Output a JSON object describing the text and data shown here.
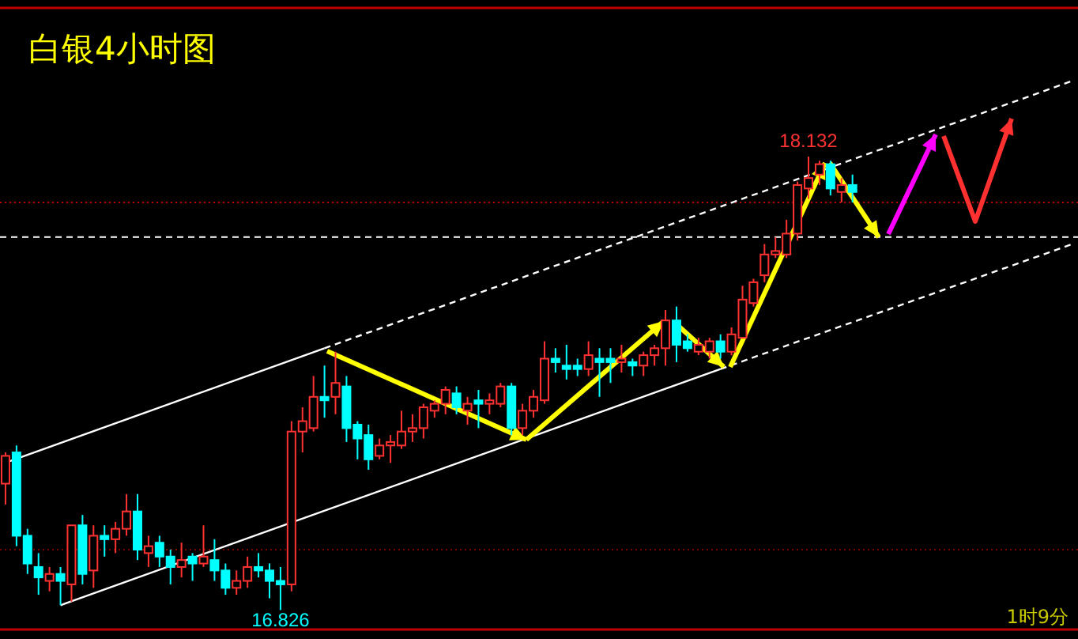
{
  "chart_data": {
    "type": "candlestick",
    "title": "白银4小时图",
    "categories": [
      null,
      null,
      null,
      null,
      null,
      null,
      null,
      null,
      null,
      null,
      null,
      null,
      null,
      null,
      null,
      null,
      null,
      null,
      null,
      null,
      null,
      null,
      null,
      null,
      null,
      null,
      null,
      null,
      null,
      null,
      null,
      null,
      null,
      null,
      null,
      null,
      null,
      null,
      null,
      null,
      null,
      null,
      null,
      null,
      null,
      null,
      null,
      null,
      null,
      null,
      null,
      null,
      null,
      null,
      null,
      null,
      null,
      null,
      null,
      null,
      null,
      null,
      null,
      null,
      null,
      null,
      null,
      null,
      null,
      null,
      null,
      null,
      null,
      null,
      null,
      null,
      null,
      null,
      null,
      null,
      null,
      null,
      null,
      null,
      null,
      null,
      null,
      null,
      null,
      null,
      null,
      null,
      null,
      null,
      null,
      null,
      null,
      null
    ],
    "ohlc": [
      [
        17.19,
        17.28,
        17.13,
        17.27
      ],
      [
        17.28,
        17.3,
        17.01,
        17.04
      ],
      [
        17.04,
        17.06,
        16.93,
        16.96
      ],
      [
        16.95,
        16.99,
        16.87,
        16.92
      ],
      [
        16.91,
        16.95,
        16.88,
        16.93
      ],
      [
        16.93,
        16.95,
        16.84,
        16.91
      ],
      [
        16.9,
        17.07,
        16.85,
        17.07
      ],
      [
        17.07,
        17.1,
        16.9,
        16.93
      ],
      [
        16.94,
        17.07,
        16.89,
        17.04
      ],
      [
        17.04,
        17.07,
        16.98,
        17.03
      ],
      [
        17.03,
        17.08,
        16.99,
        17.06
      ],
      [
        17.06,
        17.16,
        17.04,
        17.11
      ],
      [
        17.11,
        17.16,
        16.97,
        17.0
      ],
      [
        16.99,
        17.04,
        16.95,
        17.01
      ],
      [
        17.02,
        17.04,
        16.95,
        16.98
      ],
      [
        16.98,
        17.0,
        16.9,
        16.95
      ],
      [
        16.95,
        17.02,
        16.92,
        16.97
      ],
      [
        16.98,
        16.99,
        16.91,
        16.96
      ],
      [
        16.96,
        17.07,
        16.95,
        16.98
      ],
      [
        16.97,
        17.03,
        16.91,
        16.94
      ],
      [
        16.94,
        16.96,
        16.87,
        16.89
      ],
      [
        16.89,
        16.94,
        16.87,
        16.91
      ],
      [
        16.91,
        16.98,
        16.89,
        16.95
      ],
      [
        16.95,
        16.99,
        16.92,
        16.94
      ],
      [
        16.94,
        16.96,
        16.86,
        16.91
      ],
      [
        16.91,
        16.95,
        16.826,
        16.9
      ],
      [
        16.9,
        17.37,
        16.88,
        17.34
      ],
      [
        17.34,
        17.41,
        17.28,
        17.37
      ],
      [
        17.35,
        17.5,
        17.34,
        17.44
      ],
      [
        17.44,
        17.53,
        17.38,
        17.43
      ],
      [
        17.44,
        17.57,
        17.39,
        17.48
      ],
      [
        17.47,
        17.5,
        17.31,
        17.35
      ],
      [
        17.36,
        17.37,
        17.26,
        17.32
      ],
      [
        17.33,
        17.36,
        17.23,
        17.26
      ],
      [
        17.27,
        17.32,
        17.26,
        17.3
      ],
      [
        17.3,
        17.33,
        17.25,
        17.31
      ],
      [
        17.3,
        17.4,
        17.29,
        17.34
      ],
      [
        17.34,
        17.39,
        17.31,
        17.35
      ],
      [
        17.35,
        17.42,
        17.32,
        17.41
      ],
      [
        17.4,
        17.43,
        17.38,
        17.42
      ],
      [
        17.42,
        17.47,
        17.39,
        17.46
      ],
      [
        17.45,
        17.47,
        17.39,
        17.41
      ],
      [
        17.4,
        17.44,
        17.36,
        17.42
      ],
      [
        17.43,
        17.46,
        17.35,
        17.42
      ],
      [
        17.42,
        17.45,
        17.39,
        17.43
      ],
      [
        17.42,
        17.48,
        17.41,
        17.47
      ],
      [
        17.47,
        17.48,
        17.33,
        17.35
      ],
      [
        17.35,
        17.42,
        17.33,
        17.4
      ],
      [
        17.4,
        17.46,
        17.38,
        17.44
      ],
      [
        17.43,
        17.6,
        17.42,
        17.55
      ],
      [
        17.55,
        17.58,
        17.51,
        17.54
      ],
      [
        17.53,
        17.59,
        17.49,
        17.52
      ],
      [
        17.53,
        17.55,
        17.5,
        17.52
      ],
      [
        17.52,
        17.6,
        17.5,
        17.56
      ],
      [
        17.55,
        17.58,
        17.44,
        17.54
      ],
      [
        17.55,
        17.58,
        17.48,
        17.54
      ],
      [
        17.54,
        17.59,
        17.51,
        17.55
      ],
      [
        17.54,
        17.55,
        17.5,
        17.53
      ],
      [
        17.53,
        17.57,
        17.5,
        17.56
      ],
      [
        17.56,
        17.59,
        17.53,
        17.58
      ],
      [
        17.58,
        17.69,
        17.53,
        17.66
      ],
      [
        17.66,
        17.7,
        17.54,
        17.59
      ],
      [
        17.6,
        17.62,
        17.57,
        17.58
      ],
      [
        17.57,
        17.61,
        17.56,
        17.59
      ],
      [
        17.57,
        17.61,
        17.55,
        17.6
      ],
      [
        17.6,
        17.62,
        17.55,
        17.57
      ],
      [
        17.57,
        17.64,
        17.56,
        17.62
      ],
      [
        17.61,
        17.76,
        17.61,
        17.72
      ],
      [
        17.71,
        17.78,
        17.7,
        17.77
      ],
      [
        17.79,
        17.88,
        17.77,
        17.85
      ],
      [
        17.85,
        17.9,
        17.84,
        17.86
      ],
      [
        17.85,
        17.95,
        17.84,
        17.91
      ],
      [
        17.91,
        18.06,
        17.89,
        18.05
      ],
      [
        18.04,
        18.132,
        18.01,
        18.07
      ],
      [
        18.08,
        18.12,
        18.05,
        18.11
      ],
      [
        18.11,
        18.12,
        18.02,
        18.04
      ],
      [
        18.03,
        18.07,
        18.0,
        18.05
      ],
      [
        18.05,
        18.08,
        18.0,
        18.03
      ],
      null,
      null,
      null,
      null,
      null,
      null,
      null,
      null,
      null,
      null,
      null,
      null,
      null,
      null,
      null,
      null,
      null,
      null,
      null,
      null
    ],
    "colors": [
      "#ff3232",
      "#00ffff",
      "#00ffff",
      "#00ffff",
      "#ff3232",
      "#00ffff",
      "#ff3232",
      "#00ffff",
      "#ff3232",
      "#00ffff",
      "#ff3232",
      "#ff3232",
      "#00ffff",
      "#ff3232",
      "#00ffff",
      "#00ffff",
      "#ff3232",
      "#00ffff",
      "#ff3232",
      "#00ffff",
      "#00ffff",
      "#ff3232",
      "#ff3232",
      "#00ffff",
      "#00ffff",
      "#00ffff",
      "#ff3232",
      "#ff3232",
      "#ff3232",
      "#00ffff",
      "#ff3232",
      "#00ffff",
      "#00ffff",
      "#00ffff",
      "#ff3232",
      "#ff3232",
      "#ff3232",
      "#ff3232",
      "#ff3232",
      "#ff3232",
      "#ff3232",
      "#00ffff",
      "#ff3232",
      "#00ffff",
      "#ff3232",
      "#ff3232",
      "#00ffff",
      "#ff3232",
      "#ff3232",
      "#ff3232",
      "#00ffff",
      "#00ffff",
      "#00ffff",
      "#ff3232",
      "#00ffff",
      "#00ffff",
      "#ff3232",
      "#00ffff",
      "#ff3232",
      "#ff3232",
      "#ff3232",
      "#00ffff",
      "#00ffff",
      "#ff3232",
      "#ff3232",
      "#00ffff",
      "#ff3232",
      "#ff3232",
      "#ff3232",
      "#ff3232",
      "#ff3232",
      "#ff3232",
      "#ff3232",
      "#ff3232",
      "#ff3232",
      "#00ffff",
      "#ff3232",
      "#00ffff",
      null,
      null,
      null,
      null,
      null,
      null,
      null,
      null,
      null,
      null,
      null,
      null,
      null,
      null,
      null,
      null,
      null,
      null,
      null,
      null
    ],
    "series": [
      {
        "type": "line",
        "color": "#ffffff",
        "line_style": "solid",
        "values": [
          17.25,
          null,
          null,
          null,
          null,
          null,
          null,
          null,
          null,
          null,
          null,
          null,
          null,
          null,
          null,
          null,
          null,
          null,
          null,
          null,
          null,
          null,
          null,
          null,
          null,
          null,
          null,
          null,
          null,
          17.58,
          null,
          null,
          null,
          null,
          null,
          null,
          null,
          null,
          null,
          null,
          null,
          null,
          null,
          null,
          null,
          null,
          null,
          null,
          null,
          null,
          null,
          null,
          null,
          null,
          null,
          null,
          null,
          null,
          null,
          null,
          null,
          null,
          null,
          null,
          null,
          null,
          null,
          null,
          null,
          null,
          null,
          null,
          null,
          null,
          null,
          null,
          null,
          null,
          null,
          null,
          null,
          null,
          null,
          null,
          null,
          null,
          null,
          null,
          null,
          null,
          null,
          null,
          null,
          null,
          null,
          null,
          null,
          null
        ]
      },
      {
        "type": "line",
        "color": "#ffffff",
        "line_style": "dashed",
        "values": [
          null,
          null,
          null,
          null,
          null,
          null,
          null,
          null,
          null,
          null,
          null,
          null,
          null,
          null,
          null,
          null,
          null,
          null,
          null,
          null,
          null,
          null,
          null,
          null,
          null,
          null,
          null,
          null,
          null,
          17.58,
          null,
          null,
          null,
          null,
          null,
          null,
          null,
          null,
          null,
          null,
          null,
          null,
          null,
          null,
          null,
          null,
          null,
          null,
          null,
          null,
          null,
          null,
          null,
          null,
          null,
          null,
          null,
          null,
          null,
          null,
          null,
          null,
          null,
          null,
          null,
          null,
          null,
          null,
          null,
          null,
          null,
          null,
          null,
          null,
          null,
          null,
          null,
          null,
          null,
          null,
          null,
          null,
          null,
          null,
          null,
          null,
          null,
          null,
          null,
          null,
          null,
          null,
          null,
          null,
          null,
          null,
          null,
          18.35
        ]
      },
      {
        "type": "line",
        "color": "#ffffff",
        "line_style": "solid",
        "values": [
          null,
          null,
          null,
          null,
          null,
          16.84,
          null,
          null,
          null,
          null,
          null,
          null,
          null,
          null,
          null,
          null,
          null,
          null,
          null,
          null,
          null,
          null,
          null,
          null,
          null,
          null,
          null,
          null,
          null,
          null,
          null,
          null,
          null,
          null,
          null,
          null,
          null,
          null,
          null,
          null,
          null,
          null,
          null,
          null,
          null,
          null,
          null,
          null,
          null,
          null,
          null,
          null,
          null,
          null,
          null,
          null,
          null,
          null,
          null,
          null,
          null,
          null,
          null,
          null,
          null,
          17.52,
          null,
          null,
          null,
          null,
          null,
          null,
          null,
          null,
          null,
          null,
          null,
          null,
          null,
          null,
          null,
          null,
          null,
          null,
          null,
          null,
          null,
          null,
          null,
          null,
          null,
          null,
          null,
          null,
          null,
          null,
          null,
          null
        ]
      },
      {
        "type": "line",
        "color": "#ffffff",
        "line_style": "dashed",
        "values": [
          null,
          null,
          null,
          null,
          null,
          null,
          null,
          null,
          null,
          null,
          null,
          null,
          null,
          null,
          null,
          null,
          null,
          null,
          null,
          null,
          null,
          null,
          null,
          null,
          null,
          null,
          null,
          null,
          null,
          null,
          null,
          null,
          null,
          null,
          null,
          null,
          null,
          null,
          null,
          null,
          null,
          null,
          null,
          null,
          null,
          null,
          null,
          null,
          null,
          null,
          null,
          null,
          null,
          null,
          null,
          null,
          null,
          null,
          null,
          null,
          null,
          null,
          null,
          null,
          null,
          17.52,
          null,
          null,
          null,
          null,
          null,
          null,
          null,
          null,
          null,
          null,
          null,
          null,
          null,
          null,
          null,
          null,
          null,
          null,
          null,
          null,
          null,
          null,
          null,
          null,
          null,
          null,
          null,
          null,
          null,
          null,
          null,
          17.88
        ]
      }
    ],
    "ref_lines": [
      {
        "axis": "y",
        "value": 18.0,
        "color": "#c00000",
        "line_style": "dotted"
      },
      {
        "axis": "y",
        "value": 17.9,
        "color": "#ffffff",
        "line_style": "dashed"
      },
      {
        "axis": "y",
        "value": 17.0,
        "color": "#800000",
        "line_style": "dotted"
      }
    ],
    "ylim": [
      16.77,
      18.56
    ],
    "annotations": [
      {
        "text": "18.132",
        "y": 18.132
      },
      {
        "text": "16.826",
        "y": 16.826
      },
      "1时9分"
    ]
  }
}
